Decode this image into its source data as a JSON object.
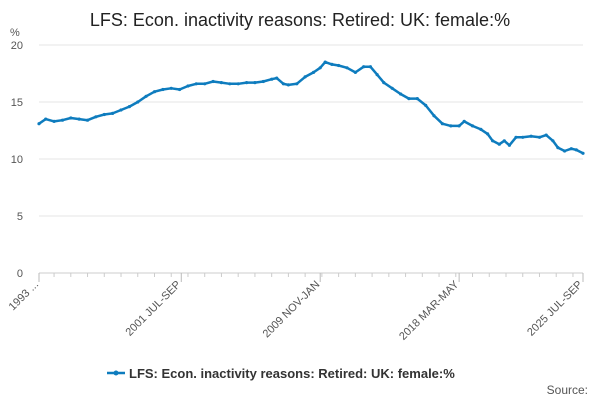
{
  "chart_data": {
    "type": "line",
    "title": "LFS: Econ. inactivity reasons: Retired: UK: female:%",
    "ylabel": "%",
    "xlabel": "",
    "ylim": [
      0,
      20
    ],
    "y_ticks": [
      "0",
      "5",
      "10",
      "15",
      "20"
    ],
    "x_ticks": [
      "1993 ...",
      "2001 JUL-SEP",
      "2009 NOV-JAN",
      "2018 MAR-MAY",
      "2025 JUL-SEP"
    ],
    "x_tick_years": [
      1993.1,
      2001.6,
      2009.9,
      2018.2,
      2025.6
    ],
    "grid": true,
    "legend": "bottom-center",
    "series": [
      {
        "name": "LFS: Econ. inactivity reasons: Retired: UK: female:%",
        "color": "#0e7cbe",
        "points": [
          [
            1993.1,
            13.1
          ],
          [
            1993.5,
            13.5
          ],
          [
            1994.0,
            13.3
          ],
          [
            1994.5,
            13.4
          ],
          [
            1995.0,
            13.6
          ],
          [
            1995.5,
            13.5
          ],
          [
            1996.0,
            13.4
          ],
          [
            1996.5,
            13.7
          ],
          [
            1997.0,
            13.9
          ],
          [
            1997.5,
            14.0
          ],
          [
            1998.0,
            14.3
          ],
          [
            1998.5,
            14.6
          ],
          [
            1999.0,
            15.0
          ],
          [
            1999.5,
            15.5
          ],
          [
            2000.0,
            15.9
          ],
          [
            2000.5,
            16.1
          ],
          [
            2001.0,
            16.2
          ],
          [
            2001.5,
            16.1
          ],
          [
            2002.0,
            16.4
          ],
          [
            2002.5,
            16.6
          ],
          [
            2003.0,
            16.6
          ],
          [
            2003.5,
            16.8
          ],
          [
            2004.0,
            16.7
          ],
          [
            2004.5,
            16.6
          ],
          [
            2005.0,
            16.6
          ],
          [
            2005.5,
            16.7
          ],
          [
            2006.0,
            16.7
          ],
          [
            2006.5,
            16.8
          ],
          [
            2007.0,
            17.0
          ],
          [
            2007.3,
            17.1
          ],
          [
            2007.7,
            16.6
          ],
          [
            2008.0,
            16.5
          ],
          [
            2008.5,
            16.6
          ],
          [
            2009.0,
            17.2
          ],
          [
            2009.5,
            17.6
          ],
          [
            2009.9,
            18.0
          ],
          [
            2010.2,
            18.5
          ],
          [
            2010.6,
            18.3
          ],
          [
            2011.0,
            18.2
          ],
          [
            2011.5,
            18.0
          ],
          [
            2012.0,
            17.6
          ],
          [
            2012.5,
            18.1
          ],
          [
            2012.9,
            18.1
          ],
          [
            2013.3,
            17.4
          ],
          [
            2013.7,
            16.7
          ],
          [
            2014.2,
            16.2
          ],
          [
            2014.7,
            15.7
          ],
          [
            2015.2,
            15.3
          ],
          [
            2015.7,
            15.3
          ],
          [
            2016.2,
            14.7
          ],
          [
            2016.7,
            13.8
          ],
          [
            2017.2,
            13.1
          ],
          [
            2017.7,
            12.9
          ],
          [
            2018.2,
            12.9
          ],
          [
            2018.5,
            13.3
          ],
          [
            2019.0,
            12.9
          ],
          [
            2019.5,
            12.6
          ],
          [
            2019.9,
            12.2
          ],
          [
            2020.2,
            11.6
          ],
          [
            2020.6,
            11.3
          ],
          [
            2020.9,
            11.6
          ],
          [
            2021.2,
            11.2
          ],
          [
            2021.6,
            11.9
          ],
          [
            2022.0,
            11.9
          ],
          [
            2022.5,
            12.0
          ],
          [
            2023.0,
            11.9
          ],
          [
            2023.4,
            12.1
          ],
          [
            2023.8,
            11.6
          ],
          [
            2024.1,
            11.0
          ],
          [
            2024.5,
            10.7
          ],
          [
            2024.9,
            10.9
          ],
          [
            2025.2,
            10.8
          ],
          [
            2025.6,
            10.5
          ]
        ]
      }
    ],
    "source_label": "Source:"
  }
}
